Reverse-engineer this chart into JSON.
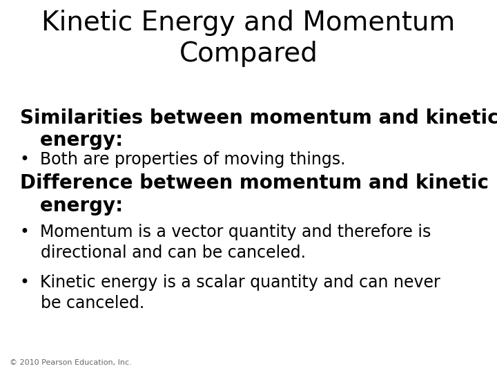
{
  "title_line1": "Kinetic Energy and Momentum",
  "title_line2": "Compared",
  "title_fontsize": 28,
  "title_color": "#000000",
  "bg_color": "#ffffff",
  "section1_heading_line1": "Similarities between momentum and kinetic",
  "section1_heading_line2": "   energy:",
  "section1_bullet1": "•  Both are properties of moving things.",
  "section2_heading_line1": "Difference between momentum and kinetic",
  "section2_heading_line2": "   energy:",
  "section2_bullet1_line1": "•  Momentum is a vector quantity and therefore is",
  "section2_bullet1_line2": "    directional and can be canceled.",
  "section2_bullet2_line1": "•  Kinetic energy is a scalar quantity and can never",
  "section2_bullet2_line2": "    be canceled.",
  "footer": "© 2010 Pearson Education, Inc.",
  "heading_fontsize": 20,
  "body_fontsize": 17,
  "footer_fontsize": 8,
  "title_fontweight": "normal",
  "heading_fontweight": "bold"
}
